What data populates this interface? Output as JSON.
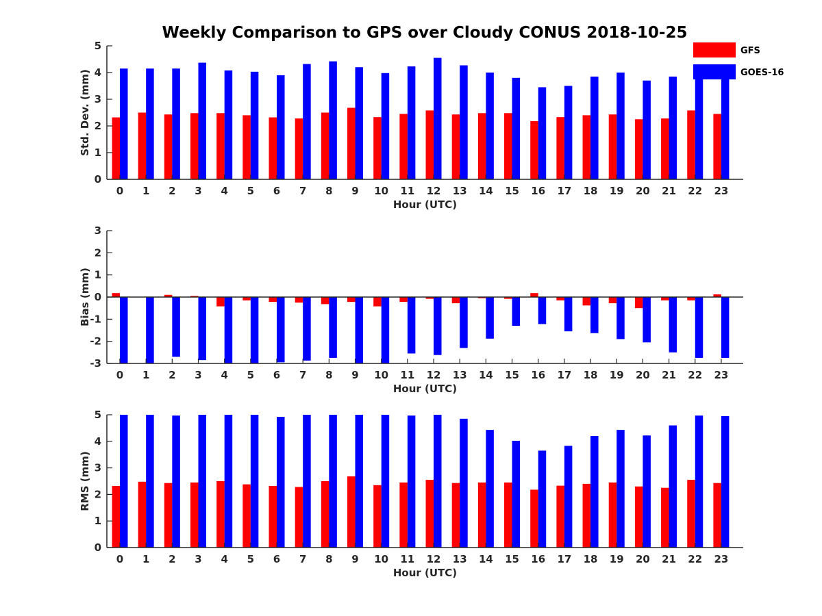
{
  "figure": {
    "title": "Weekly Comparison to GPS over Cloudy CONUS 2018-10-25"
  },
  "legend": {
    "position": "top-right",
    "items": [
      {
        "label": "GFS",
        "color": "#ff0000"
      },
      {
        "label": "GOES-16",
        "color": "#0000ff"
      }
    ]
  },
  "chart_data": [
    {
      "type": "bar",
      "title": "Weekly Comparison to GPS over Cloudy CONUS 2018-10-25",
      "xlabel": "Hour (UTC)",
      "ylabel": "Std. Dev. (mm)",
      "ylim": [
        0,
        5
      ],
      "yticks": [
        0,
        1,
        2,
        3,
        4,
        5
      ],
      "grid": false,
      "categories": [
        "0",
        "1",
        "2",
        "3",
        "4",
        "5",
        "6",
        "7",
        "8",
        "9",
        "10",
        "11",
        "12",
        "13",
        "14",
        "15",
        "16",
        "17",
        "18",
        "19",
        "20",
        "21",
        "22",
        "23"
      ],
      "series": [
        {
          "name": "GFS",
          "color": "#ff0000",
          "values": [
            2.32,
            2.5,
            2.43,
            2.48,
            2.48,
            2.4,
            2.32,
            2.28,
            2.5,
            2.68,
            2.33,
            2.45,
            2.58,
            2.43,
            2.48,
            2.48,
            2.18,
            2.33,
            2.4,
            2.43,
            2.25,
            2.28,
            2.58,
            2.45
          ]
        },
        {
          "name": "GOES-16",
          "color": "#0000ff",
          "values": [
            4.15,
            4.15,
            4.15,
            4.37,
            4.08,
            4.03,
            3.9,
            4.32,
            4.42,
            4.2,
            3.98,
            4.23,
            4.55,
            4.27,
            4.0,
            3.8,
            3.45,
            3.5,
            3.85,
            4.0,
            3.7,
            3.85,
            4.13,
            3.85
          ]
        }
      ]
    },
    {
      "type": "bar",
      "xlabel": "Hour (UTC)",
      "ylabel": "Bias (mm)",
      "ylim": [
        -3,
        3
      ],
      "yticks": [
        -3,
        -2,
        -1,
        0,
        1,
        2,
        3
      ],
      "grid": false,
      "zero_line": true,
      "categories": [
        "0",
        "1",
        "2",
        "3",
        "4",
        "5",
        "6",
        "7",
        "8",
        "9",
        "10",
        "11",
        "12",
        "13",
        "14",
        "15",
        "16",
        "17",
        "18",
        "19",
        "20",
        "21",
        "22",
        "23"
      ],
      "series": [
        {
          "name": "GFS",
          "color": "#ff0000",
          "values": [
            0.18,
            0.0,
            0.1,
            0.05,
            -0.42,
            -0.15,
            -0.22,
            -0.25,
            -0.32,
            -0.22,
            -0.42,
            -0.22,
            -0.08,
            -0.28,
            -0.05,
            -0.08,
            0.18,
            -0.15,
            -0.38,
            -0.28,
            -0.5,
            -0.15,
            -0.15,
            0.12
          ]
        },
        {
          "name": "GOES-16",
          "color": "#0000ff",
          "values": [
            -3.0,
            -3.0,
            -2.7,
            -2.85,
            -3.0,
            -3.0,
            -2.95,
            -2.87,
            -2.75,
            -3.0,
            -3.0,
            -2.55,
            -2.62,
            -2.3,
            -1.88,
            -1.3,
            -1.22,
            -1.55,
            -1.63,
            -1.9,
            -2.05,
            -2.5,
            -2.75,
            -2.75
          ]
        }
      ]
    },
    {
      "type": "bar",
      "xlabel": "Hour (UTC)",
      "ylabel": "RMS (mm)",
      "ylim": [
        0,
        5
      ],
      "yticks": [
        0,
        1,
        2,
        3,
        4,
        5
      ],
      "grid": false,
      "categories": [
        "0",
        "1",
        "2",
        "3",
        "4",
        "5",
        "6",
        "7",
        "8",
        "9",
        "10",
        "11",
        "12",
        "13",
        "14",
        "15",
        "16",
        "17",
        "18",
        "19",
        "20",
        "21",
        "22",
        "23"
      ],
      "series": [
        {
          "name": "GFS",
          "color": "#ff0000",
          "values": [
            2.32,
            2.48,
            2.43,
            2.45,
            2.5,
            2.38,
            2.32,
            2.28,
            2.5,
            2.68,
            2.35,
            2.45,
            2.55,
            2.43,
            2.45,
            2.45,
            2.18,
            2.33,
            2.4,
            2.45,
            2.3,
            2.25,
            2.55,
            2.43
          ]
        },
        {
          "name": "GOES-16",
          "color": "#0000ff",
          "values": [
            5.0,
            5.0,
            4.97,
            5.0,
            5.0,
            5.0,
            4.92,
            5.0,
            5.0,
            5.0,
            5.0,
            4.97,
            5.0,
            4.85,
            4.43,
            4.02,
            3.65,
            3.83,
            4.2,
            4.43,
            4.22,
            4.6,
            4.97,
            4.95
          ]
        }
      ]
    }
  ]
}
